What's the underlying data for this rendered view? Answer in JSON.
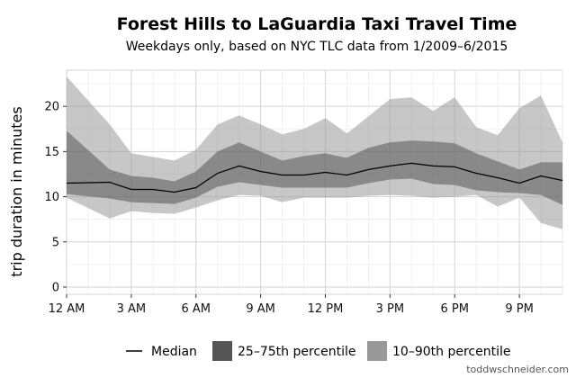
{
  "chart_data": {
    "type": "area",
    "title": "Forest Hills to LaGuardia Taxi Travel Time",
    "subtitle": "Weekdays only, based on NYC TLC data from 1/2009–6/2015",
    "ylabel": "trip duration in minutes",
    "xlabel": "",
    "xlim": [
      0,
      23
    ],
    "ylim": [
      -0.8,
      24
    ],
    "grid": true,
    "legend_placement": "bottom",
    "x_ticks": [
      {
        "value": 0,
        "label": "12 AM"
      },
      {
        "value": 3,
        "label": "3 AM"
      },
      {
        "value": 6,
        "label": "6 AM"
      },
      {
        "value": 9,
        "label": "9 AM"
      },
      {
        "value": 12,
        "label": "12 PM"
      },
      {
        "value": 15,
        "label": "3 PM"
      },
      {
        "value": 18,
        "label": "6 PM"
      },
      {
        "value": 21,
        "label": "9 PM"
      }
    ],
    "y_ticks": [
      0,
      5,
      10,
      15,
      20
    ],
    "x": [
      0,
      2,
      3,
      4,
      5,
      6,
      7,
      8,
      9,
      10,
      11,
      12,
      13,
      14,
      15,
      16,
      17,
      18,
      19,
      20,
      21,
      22,
      23
    ],
    "series": [
      {
        "name": "Median",
        "kind": "line",
        "color": "#000000",
        "values": [
          11.5,
          11.6,
          10.8,
          10.8,
          10.5,
          11.0,
          12.6,
          13.4,
          12.8,
          12.4,
          12.4,
          12.7,
          12.4,
          13.0,
          13.4,
          13.7,
          13.4,
          13.3,
          12.6,
          12.1,
          11.5,
          12.3,
          11.8
        ]
      },
      {
        "name": "25–75th percentile",
        "kind": "band",
        "color": "#555555",
        "lower": [
          10.3,
          9.8,
          9.4,
          9.3,
          9.2,
          9.9,
          11.1,
          11.6,
          11.3,
          11.0,
          11.0,
          11.0,
          11.0,
          11.5,
          11.9,
          12.0,
          11.4,
          11.3,
          10.7,
          10.5,
          10.4,
          10.2,
          9.1
        ],
        "upper": [
          17.3,
          13.0,
          12.3,
          12.1,
          11.7,
          12.8,
          15.0,
          16.0,
          15.0,
          14.0,
          14.5,
          14.8,
          14.3,
          15.4,
          16.0,
          16.2,
          16.1,
          15.9,
          14.8,
          13.9,
          13.0,
          13.8,
          13.8
        ]
      },
      {
        "name": "10–90th percentile",
        "kind": "band",
        "color": "#999999",
        "lower": [
          9.9,
          7.6,
          8.4,
          8.2,
          8.1,
          8.8,
          9.6,
          10.2,
          10.1,
          9.4,
          9.9,
          9.9,
          9.9,
          10.1,
          10.2,
          10.1,
          9.9,
          10.0,
          10.2,
          8.9,
          9.9,
          7.1,
          6.4
        ],
        "upper": [
          23.3,
          18.0,
          14.8,
          14.4,
          14.0,
          15.2,
          18.0,
          19.0,
          18.0,
          16.9,
          17.5,
          18.7,
          17.0,
          18.9,
          20.8,
          21.0,
          19.5,
          21.0,
          17.7,
          16.8,
          19.8,
          21.2,
          16.0
        ]
      }
    ],
    "credit": "toddwschneider.com"
  }
}
